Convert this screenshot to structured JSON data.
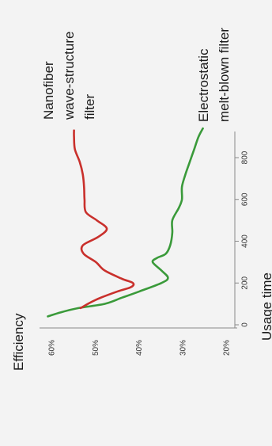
{
  "chart_data": {
    "type": "line",
    "title": "",
    "xlabel": "Usage time",
    "ylabel": "Efficiency",
    "xlim": [
      0,
      950
    ],
    "ylim": [
      20,
      65
    ],
    "x_ticks": [
      0,
      200,
      400,
      600,
      800
    ],
    "y_ticks": [
      20,
      30,
      40,
      50,
      60
    ],
    "y_tick_labels": [
      "20%",
      "30%",
      "40%",
      "50%",
      "60%"
    ],
    "grid": false,
    "series": [
      {
        "name_lines": [
          "Nanofiber",
          "wave-structure",
          "filter"
        ],
        "color": "#c9302c",
        "x": [
          80,
          120,
          160,
          180,
          200,
          220,
          260,
          300,
          340,
          380,
          420,
          460,
          500,
          540,
          600,
          660,
          720,
          780,
          840,
          900,
          930
        ],
        "y": [
          53.5,
          50,
          45,
          42,
          41.5,
          44,
          48,
          50,
          52.8,
          53,
          49.5,
          47.5,
          49.8,
          52.3,
          52.6,
          52.7,
          53,
          53.7,
          54.8,
          55,
          55
        ]
      },
      {
        "name_lines": [
          "Electrostatic",
          "melt-blown filter"
        ],
        "color": "#3a9a3a",
        "x": [
          40,
          60,
          80,
          100,
          130,
          160,
          200,
          225,
          260,
          300,
          320,
          340,
          380,
          440,
          500,
          560,
          600,
          660,
          720,
          780,
          840,
          900,
          940
        ],
        "y": [
          61,
          58,
          54,
          48,
          44,
          40,
          35,
          33.5,
          35,
          37,
          36,
          34,
          33,
          32.5,
          32.5,
          31,
          30.3,
          30.3,
          29.5,
          28.5,
          27.5,
          26.5,
          25.5
        ]
      }
    ]
  }
}
